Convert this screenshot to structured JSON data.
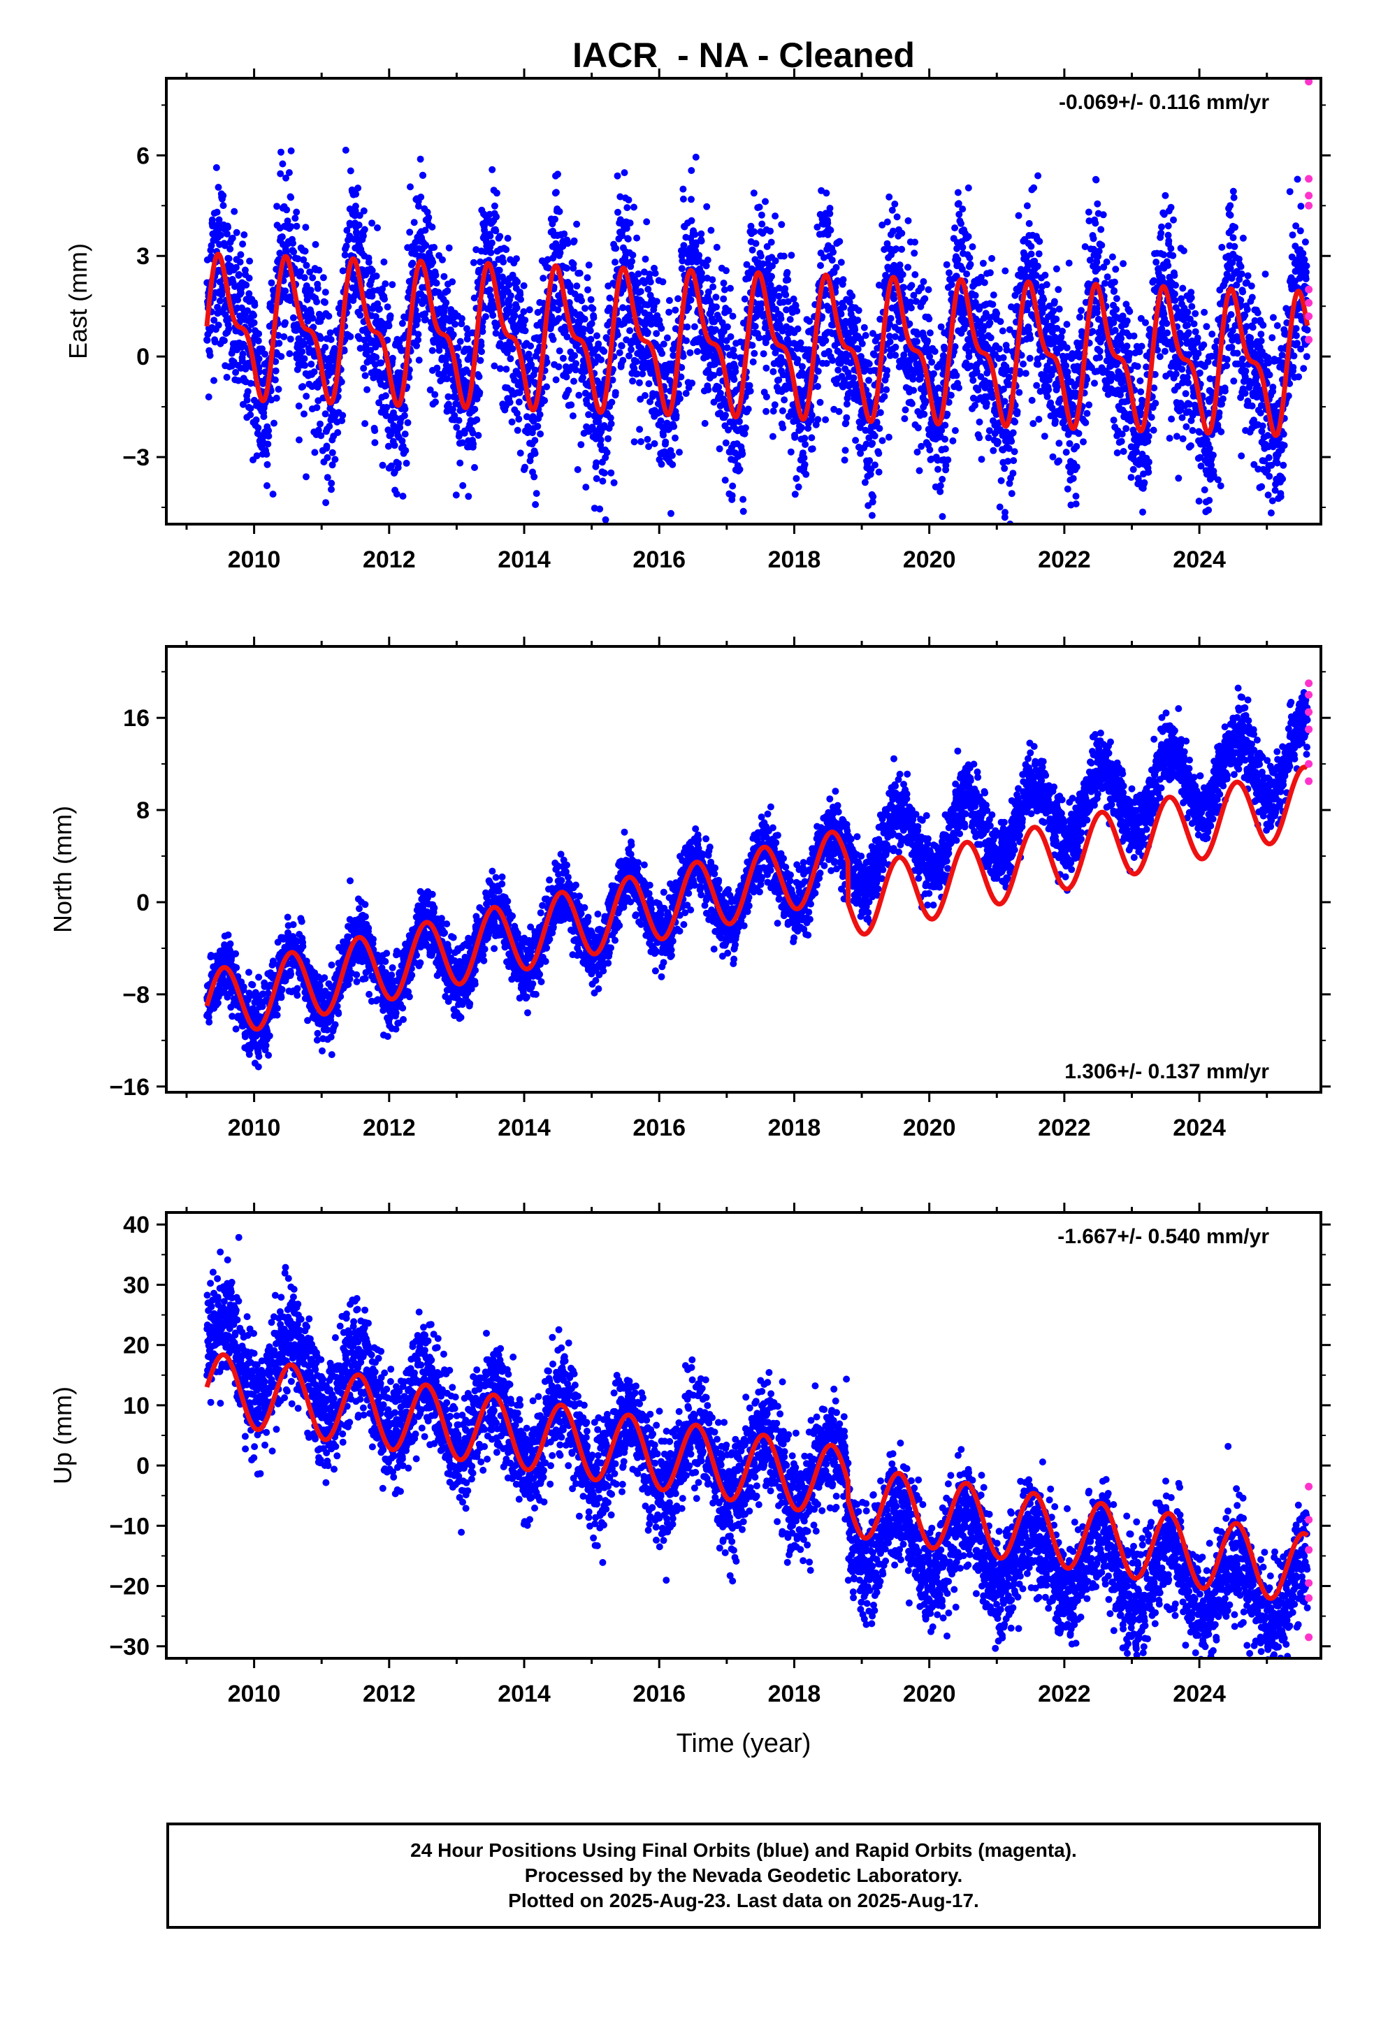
{
  "chart_data": [
    {
      "type": "scatter",
      "title": "IACR  - NA - Cleaned",
      "ylabel": "East (mm)",
      "xlabel": "",
      "xlim": [
        2008.7,
        2025.8
      ],
      "ylim": [
        -5.0,
        8.3
      ],
      "yticks": [
        6,
        3,
        0,
        -3
      ],
      "ytick_labels": [
        "6",
        "3",
        "0",
        "−3"
      ],
      "xticks": [
        2010,
        2012,
        2014,
        2016,
        2018,
        2020,
        2022,
        2024
      ],
      "xtick_labels": [
        "2010",
        "2012",
        "2014",
        "2016",
        "2018",
        "2020",
        "2022",
        "2024"
      ],
      "rate_label": "-0.069+/- 0.116 mm/yr",
      "rate_position": "top-right",
      "model": {
        "offset": 0.9,
        "trend": -0.069,
        "annual": 1.7,
        "semiannual": 0.8,
        "t_ref": 2009.3
      },
      "points_summary": {
        "start": 2009.3,
        "end": 2025.6,
        "scatter_mm": 1.3
      },
      "rapid_points": {
        "x": 2025.62,
        "values": [
          8.2,
          5.3,
          4.8,
          4.5,
          2.0,
          1.6,
          1.2,
          0.5
        ]
      },
      "series": [
        {
          "name": "Final Orbits",
          "color": "#0000ff"
        },
        {
          "name": "Rapid Orbits",
          "color": "#ff33cc"
        },
        {
          "name": "Model",
          "color": "#ee1111"
        }
      ]
    },
    {
      "type": "scatter",
      "title": "",
      "ylabel": "North (mm)",
      "xlabel": "",
      "xlim": [
        2008.7,
        2025.8
      ],
      "ylim": [
        -16.5,
        22.2
      ],
      "yticks": [
        16,
        8,
        0,
        -8,
        -16
      ],
      "ytick_labels": [
        "16",
        "8",
        "0",
        "−8",
        "−16"
      ],
      "xticks": [
        2010,
        2012,
        2014,
        2016,
        2018,
        2020,
        2022,
        2024
      ],
      "xtick_labels": [
        "2010",
        "2012",
        "2014",
        "2016",
        "2018",
        "2020",
        "2022",
        "2024"
      ],
      "rate_label": "1.306+/- 0.137 mm/yr",
      "rate_position": "bottom-right",
      "model": {
        "offset": -9.0,
        "trend": 1.306,
        "annual": 3.0,
        "semiannual": 0.0,
        "t_ref": 2009.3,
        "step_time": 2018.8,
        "step_size": -3.5
      },
      "points_summary": {
        "start": 2009.3,
        "end": 2025.6,
        "scatter_mm": 1.4,
        "points_offset_after_2018.8": 4.0
      },
      "rapid_points": {
        "x": 2025.62,
        "values": [
          19.0,
          18.0,
          16.5,
          15.0,
          12.0,
          10.5
        ]
      },
      "series": [
        {
          "name": "Final Orbits",
          "color": "#0000ff"
        },
        {
          "name": "Rapid Orbits",
          "color": "#ff33cc"
        },
        {
          "name": "Model",
          "color": "#ee1111"
        }
      ]
    },
    {
      "type": "scatter",
      "title": "",
      "ylabel": "Up (mm)",
      "xlabel": "Time (year)",
      "xlim": [
        2008.7,
        2025.8
      ],
      "ylim": [
        -32.0,
        42.0
      ],
      "yticks": [
        40,
        30,
        20,
        10,
        0,
        -10,
        -20,
        -30
      ],
      "ytick_labels": [
        "40",
        "30",
        "20",
        "10",
        "0",
        "−10",
        "−20",
        "−30"
      ],
      "xticks": [
        2010,
        2012,
        2014,
        2016,
        2018,
        2020,
        2022,
        2024
      ],
      "xtick_labels": [
        "2010",
        "2012",
        "2014",
        "2016",
        "2018",
        "2020",
        "2022",
        "2024"
      ],
      "rate_label": "-1.667+/- 0.540 mm/yr",
      "rate_position": "top-right",
      "model": {
        "offset": 13.0,
        "trend": -1.667,
        "annual": 5.8,
        "semiannual": 0.0,
        "t_ref": 2009.3,
        "step_time": 2018.8,
        "step_size": -3.0
      },
      "points_summary": {
        "start": 2009.3,
        "end": 2025.6,
        "scatter_mm": 4.5,
        "points_offset_before_2014": 6.0,
        "points_offset_after_2018.8": -5.0
      },
      "rapid_points": {
        "x": 2025.62,
        "values": [
          -3.5,
          -9.0,
          -14.0,
          -19.5,
          -22.0,
          -28.5
        ]
      },
      "series": [
        {
          "name": "Final Orbits",
          "color": "#0000ff"
        },
        {
          "name": "Rapid Orbits",
          "color": "#ff33cc"
        },
        {
          "name": "Model",
          "color": "#ee1111"
        }
      ]
    }
  ],
  "footer": {
    "line1": "24 Hour Positions Using Final Orbits (blue) and Rapid Orbits (magenta).",
    "line2": "Processed by the Nevada Geodetic Laboratory.",
    "line3": "Plotted on 2025-Aug-23. Last data on 2025-Aug-17."
  }
}
